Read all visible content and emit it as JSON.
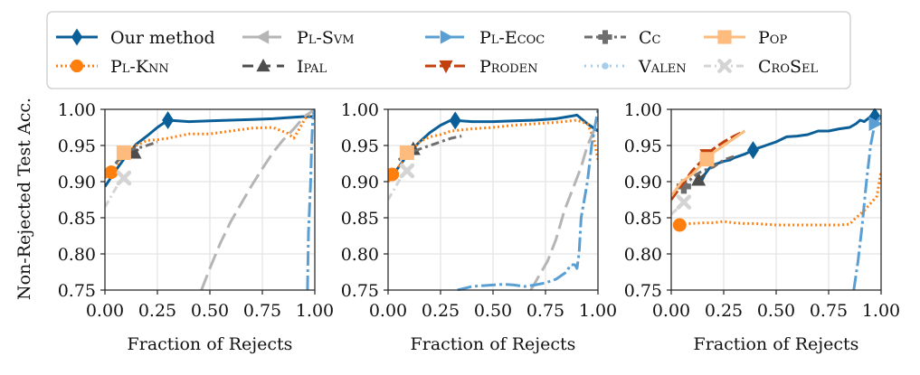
{
  "chart_data": {
    "type": "line",
    "ylabel": "Non-Rejected Test Acc.",
    "xlabel": "Fraction of Rejects",
    "xlim": [
      0,
      1
    ],
    "ylim": [
      0.75,
      1.0
    ],
    "xticks": [
      "0.00",
      "0.25",
      "0.50",
      "0.75",
      "1.00"
    ],
    "yticks": [
      "0.75",
      "0.80",
      "0.85",
      "0.90",
      "0.95",
      "1.00"
    ],
    "grid": true,
    "legend_position": "top",
    "colors": {
      "ours": "#0b5f99",
      "plknn": "#ff7f0e",
      "plsvm": "#b5b5b5",
      "ipal": "#4d4d4d",
      "plecoc": "#5a9fd4",
      "proden": "#c2410c",
      "cc": "#6e6e6e",
      "valen": "#a6cdec",
      "pop": "#fdbb7d",
      "crosel": "#d4d4d4"
    },
    "legend": [
      {
        "key": "ours",
        "label": "Our method",
        "marker": "diamond",
        "dash": ""
      },
      {
        "key": "plsvm",
        "label": "Pl-Svm",
        "marker": "triangle-left",
        "dash": "18 7",
        "sc": true
      },
      {
        "key": "plecoc",
        "label": "Pl-Ecoc",
        "marker": "triangle-right",
        "dash": "16 4 3 4",
        "sc": true
      },
      {
        "key": "cc",
        "label": "Cc",
        "marker": "plus",
        "dash": "9 4 3 4",
        "sc": true
      },
      {
        "key": "pop",
        "label": "Pop",
        "marker": "square",
        "dash": "",
        "sc": true
      },
      {
        "key": "plknn",
        "label": "Pl-Knn",
        "marker": "circle",
        "dash": "2 3",
        "sc": true
      },
      {
        "key": "ipal",
        "label": "Ipal",
        "marker": "triangle-up",
        "dash": "12 7",
        "sc": true
      },
      {
        "key": "proden",
        "label": "Proden",
        "marker": "triangle-down",
        "dash": "12 4",
        "sc": true
      },
      {
        "key": "valen",
        "label": "Valen",
        "marker": "dot",
        "dash": "2 5",
        "sc": true
      },
      {
        "key": "crosel",
        "label": "CroSel",
        "marker": "x",
        "dash": "8 4 2 4",
        "sc": true
      }
    ],
    "panels": [
      {
        "name": "left",
        "series": [
          {
            "key": "ours",
            "x": [
              0,
              0.05,
              0.1,
              0.15,
              0.2,
              0.25,
              0.3,
              0.4,
              0.5,
              0.6,
              0.7,
              0.8,
              0.9,
              0.95,
              1.0
            ],
            "y": [
              0.893,
              0.915,
              0.935,
              0.952,
              0.963,
              0.975,
              0.985,
              0.983,
              0.984,
              0.985,
              0.986,
              0.987,
              0.989,
              0.99,
              0.99
            ],
            "markers": [
              0.3
            ]
          },
          {
            "key": "plknn",
            "x": [
              0,
              0.03,
              0.06,
              0.1,
              0.15,
              0.2,
              0.25,
              0.3,
              0.4,
              0.5,
              0.6,
              0.7,
              0.8,
              0.87,
              0.9,
              0.93,
              0.96,
              1.0
            ],
            "y": [
              0.905,
              0.913,
              0.925,
              0.94,
              0.95,
              0.957,
              0.958,
              0.96,
              0.966,
              0.966,
              0.97,
              0.974,
              0.975,
              0.967,
              0.96,
              0.975,
              0.99,
              0.995
            ],
            "markers": [
              0.03
            ]
          },
          {
            "key": "plsvm",
            "x": [
              0.46,
              0.5,
              0.55,
              0.6,
              0.65,
              0.7,
              0.75,
              0.8,
              0.85,
              0.9,
              0.95,
              1.0
            ],
            "y": [
              0.75,
              0.78,
              0.815,
              0.845,
              0.87,
              0.895,
              0.918,
              0.94,
              0.958,
              0.973,
              0.99,
              1.0
            ],
            "markers": []
          },
          {
            "key": "ipal",
            "x": [
              0.12,
              0.14,
              0.16
            ],
            "y": [
              0.935,
              0.94,
              0.945
            ],
            "markers": [
              0.14
            ]
          },
          {
            "key": "plecoc",
            "x": [
              0.965,
              0.97,
              0.98,
              0.985,
              0.99,
              1.0
            ],
            "y": [
              0.75,
              0.83,
              0.9,
              0.95,
              0.985,
              1.0
            ],
            "markers": []
          },
          {
            "key": "cc",
            "x": [
              0.05,
              0.08,
              0.1,
              0.13,
              0.18,
              0.22,
              0.25
            ],
            "y": [
              0.925,
              0.935,
              0.94,
              0.945,
              0.948,
              0.952,
              0.955
            ],
            "markers": []
          },
          {
            "key": "pop",
            "x": [
              0.07,
              0.08,
              0.09,
              0.1,
              0.11
            ],
            "y": [
              0.936,
              0.938,
              0.94,
              0.942,
              0.944
            ],
            "markers": [
              0.09
            ]
          },
          {
            "key": "crosel",
            "x": [
              0,
              0.03,
              0.06,
              0.09,
              0.11
            ],
            "y": [
              0.865,
              0.88,
              0.895,
              0.905,
              0.912
            ],
            "markers": [
              0.09
            ]
          }
        ]
      },
      {
        "name": "middle",
        "series": [
          {
            "key": "ours",
            "x": [
              0,
              0.05,
              0.1,
              0.15,
              0.2,
              0.25,
              0.3,
              0.4,
              0.5,
              0.6,
              0.7,
              0.8,
              0.9,
              0.95,
              1.0
            ],
            "y": [
              0.9,
              0.92,
              0.94,
              0.955,
              0.968,
              0.978,
              0.985,
              0.983,
              0.983,
              0.984,
              0.985,
              0.987,
              0.992,
              0.98,
              0.97
            ],
            "markers": [
              0.32
            ]
          },
          {
            "key": "plknn",
            "x": [
              0,
              0.02,
              0.05,
              0.1,
              0.15,
              0.2,
              0.25,
              0.3,
              0.4,
              0.5,
              0.6,
              0.7,
              0.8,
              0.9,
              0.95,
              0.98,
              1.0
            ],
            "y": [
              0.9,
              0.91,
              0.92,
              0.94,
              0.955,
              0.962,
              0.965,
              0.97,
              0.973,
              0.975,
              0.978,
              0.98,
              0.982,
              0.985,
              0.98,
              0.96,
              0.93
            ],
            "markers": [
              0.02
            ]
          },
          {
            "key": "plsvm",
            "x": [
              0.68,
              0.72,
              0.76,
              0.8,
              0.84,
              0.88,
              0.92,
              0.95,
              0.98,
              1.0
            ],
            "y": [
              0.75,
              0.77,
              0.79,
              0.82,
              0.86,
              0.89,
              0.92,
              0.95,
              0.97,
              0.98
            ],
            "markers": []
          },
          {
            "key": "ipal",
            "x": [
              0.09,
              0.12,
              0.15
            ],
            "y": [
              0.94,
              0.945,
              0.95
            ],
            "markers": [
              0.12
            ]
          },
          {
            "key": "plecoc",
            "x": [
              0.33,
              0.4,
              0.5,
              0.55,
              0.6,
              0.65,
              0.7,
              0.75,
              0.8,
              0.85,
              0.87,
              0.89,
              0.9,
              0.91,
              0.92,
              0.95,
              0.97,
              1.0
            ],
            "y": [
              0.75,
              0.755,
              0.757,
              0.758,
              0.757,
              0.755,
              0.757,
              0.76,
              0.765,
              0.775,
              0.785,
              0.785,
              0.78,
              0.8,
              0.85,
              0.9,
              0.95,
              1.0
            ],
            "markers": []
          },
          {
            "key": "cc",
            "x": [
              0.05,
              0.1,
              0.15,
              0.2,
              0.25,
              0.3,
              0.35
            ],
            "y": [
              0.93,
              0.94,
              0.945,
              0.95,
              0.955,
              0.96,
              0.963
            ],
            "markers": []
          },
          {
            "key": "pop",
            "x": [
              0.06,
              0.08,
              0.09,
              0.1,
              0.12
            ],
            "y": [
              0.935,
              0.938,
              0.94,
              0.942,
              0.945
            ],
            "markers": [
              0.09
            ]
          },
          {
            "key": "crosel",
            "x": [
              0,
              0.03,
              0.06,
              0.09,
              0.1
            ],
            "y": [
              0.875,
              0.89,
              0.905,
              0.915,
              0.92
            ],
            "markers": [
              0.09
            ]
          }
        ]
      },
      {
        "name": "right",
        "series": [
          {
            "key": "ours",
            "x": [
              0.14,
              0.16,
              0.18,
              0.2,
              0.22,
              0.25,
              0.28,
              0.3,
              0.35,
              0.4,
              0.45,
              0.5,
              0.55,
              0.6,
              0.65,
              0.7,
              0.75,
              0.8,
              0.85,
              0.88,
              0.9,
              0.92,
              0.95,
              1.0
            ],
            "y": [
              0.898,
              0.91,
              0.918,
              0.923,
              0.925,
              0.928,
              0.93,
              0.933,
              0.938,
              0.945,
              0.95,
              0.955,
              0.962,
              0.963,
              0.965,
              0.97,
              0.97,
              0.973,
              0.975,
              0.98,
              0.985,
              0.983,
              0.99,
              0.99
            ],
            "markers": [
              0.39,
              0.97
            ]
          },
          {
            "key": "plknn",
            "x": [
              0.02,
              0.04,
              0.08,
              0.1,
              0.15,
              0.2,
              0.25,
              0.3,
              0.35,
              0.4,
              0.45,
              0.5,
              0.55,
              0.6,
              0.7,
              0.8,
              0.85,
              0.88,
              0.92,
              0.95,
              0.98,
              1.0
            ],
            "y": [
              0.84,
              0.84,
              0.842,
              0.842,
              0.843,
              0.843,
              0.845,
              0.843,
              0.842,
              0.842,
              0.841,
              0.84,
              0.84,
              0.84,
              0.84,
              0.84,
              0.841,
              0.85,
              0.86,
              0.87,
              0.88,
              0.915
            ],
            "markers": [
              0.04
            ]
          },
          {
            "key": "plecoc",
            "x": [
              0.87,
              0.89,
              0.91,
              0.93,
              0.95,
              0.97,
              1.0
            ],
            "y": [
              0.75,
              0.79,
              0.84,
              0.9,
              0.95,
              0.98,
              0.99
            ],
            "markers": [
              0.97
            ]
          },
          {
            "key": "ipal",
            "x": [
              0.12,
              0.14,
              0.16
            ],
            "y": [
              0.9,
              0.905,
              0.91
            ],
            "markers": [
              0.13
            ]
          },
          {
            "key": "cc",
            "x": [
              0.05,
              0.08,
              0.1,
              0.12,
              0.15,
              0.2,
              0.25,
              0.3
            ],
            "y": [
              0.89,
              0.9,
              0.905,
              0.91,
              0.915,
              0.92,
              0.93,
              0.935
            ],
            "markers": [
              0.06
            ]
          },
          {
            "key": "proden",
            "x": [
              0,
              0.05,
              0.1,
              0.15,
              0.18,
              0.2,
              0.25,
              0.3,
              0.35
            ],
            "y": [
              0.875,
              0.895,
              0.915,
              0.93,
              0.94,
              0.945,
              0.955,
              0.963,
              0.97
            ],
            "markers": [
              0.17
            ]
          },
          {
            "key": "pop",
            "x": [
              0,
              0.05,
              0.1,
              0.15,
              0.2,
              0.25,
              0.3,
              0.35
            ],
            "y": [
              0.88,
              0.9,
              0.91,
              0.925,
              0.94,
              0.95,
              0.96,
              0.97
            ],
            "markers": [
              0.17
            ]
          },
          {
            "key": "crosel",
            "x": [
              0,
              0.04,
              0.07
            ],
            "y": [
              0.855,
              0.865,
              0.875
            ],
            "markers": [
              0.06
            ]
          }
        ]
      }
    ]
  }
}
